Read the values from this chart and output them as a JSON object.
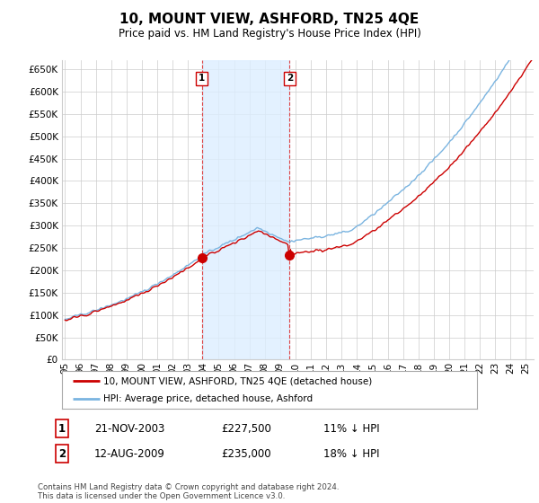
{
  "title": "10, MOUNT VIEW, ASHFORD, TN25 4QE",
  "subtitle": "Price paid vs. HM Land Registry's House Price Index (HPI)",
  "ytick_values": [
    0,
    50000,
    100000,
    150000,
    200000,
    250000,
    300000,
    350000,
    400000,
    450000,
    500000,
    550000,
    600000,
    650000
  ],
  "ylim": [
    0,
    670000
  ],
  "xlim_start": 1994.8,
  "xlim_end": 2025.5,
  "purchase1_year": 2003.9,
  "purchase1_value": 227500,
  "purchase2_year": 2009.62,
  "purchase2_value": 235000,
  "legend_line1": "10, MOUNT VIEW, ASHFORD, TN25 4QE (detached house)",
  "legend_line2": "HPI: Average price, detached house, Ashford",
  "table_row1_num": "1",
  "table_row1_date": "21-NOV-2003",
  "table_row1_price": "£227,500",
  "table_row1_hpi": "11% ↓ HPI",
  "table_row2_num": "2",
  "table_row2_date": "12-AUG-2009",
  "table_row2_price": "£235,000",
  "table_row2_hpi": "18% ↓ HPI",
  "footnote": "Contains HM Land Registry data © Crown copyright and database right 2024.\nThis data is licensed under the Open Government Licence v3.0.",
  "hpi_color": "#7ab4e0",
  "price_color": "#cc0000",
  "marker_color": "#cc0000",
  "shade_color": "#ddeeff",
  "vline_color": "#dd4444",
  "background_color": "#ffffff",
  "grid_color": "#cccccc",
  "xtick_labels": [
    "95",
    "96",
    "97",
    "98",
    "99",
    "00",
    "01",
    "02",
    "03",
    "04",
    "05",
    "06",
    "07",
    "08",
    "09",
    "10",
    "11",
    "12",
    "13",
    "14",
    "15",
    "16",
    "17",
    "18",
    "19",
    "20",
    "21",
    "22",
    "23",
    "24",
    "25"
  ],
  "xtick_years": [
    1995,
    1996,
    1997,
    1998,
    1999,
    2000,
    2001,
    2002,
    2003,
    2004,
    2005,
    2006,
    2007,
    2008,
    2009,
    2010,
    2011,
    2012,
    2013,
    2014,
    2015,
    2016,
    2017,
    2018,
    2019,
    2020,
    2021,
    2022,
    2023,
    2024,
    2025
  ]
}
